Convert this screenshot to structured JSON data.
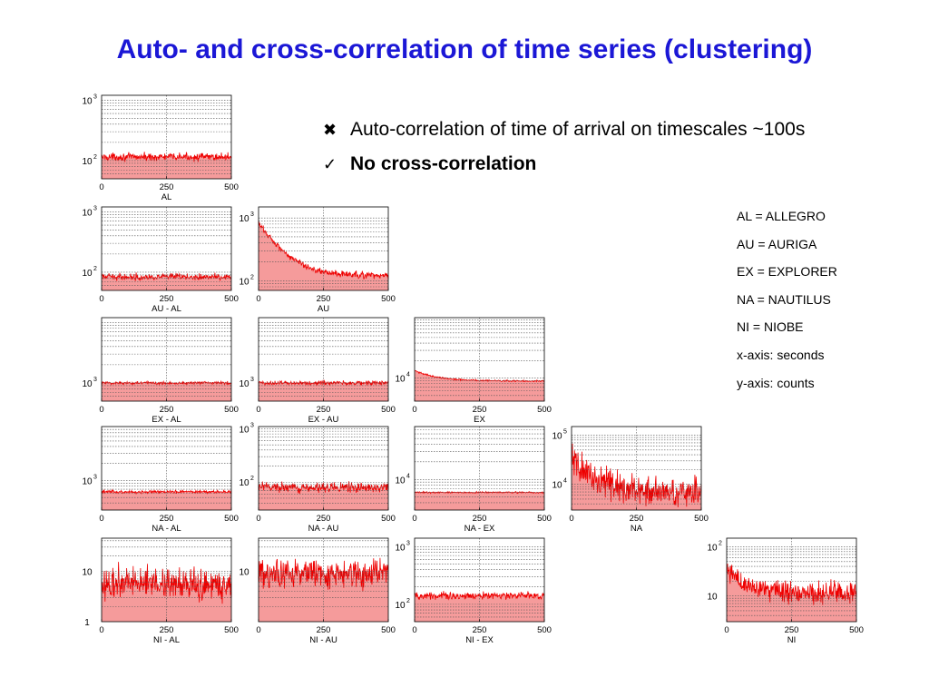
{
  "slide": {
    "title": "Auto- and cross-correlation of time series (clustering)",
    "title_color": "#1b17d6",
    "bullets": [
      {
        "marker": "✖",
        "text": "Auto-correlation of time of arrival on timescales ~100s"
      },
      {
        "marker": "✓",
        "text": "No cross-correlation"
      }
    ],
    "legend": [
      "AL = ALLEGRO",
      "AU = AURIGA",
      "EX = EXPLORER",
      "NA = NAUTILUS",
      "NI = NIOBE",
      "x-axis: seconds",
      "y-axis: counts"
    ]
  },
  "colors": {
    "series_line": "#ee0000",
    "series_fill": "#f59b9b",
    "grid": "#555555",
    "frame": "#000000"
  },
  "chart_data": [
    {
      "type": "area",
      "title": "AL",
      "xlim": [
        0,
        500
      ],
      "xticks": [
        "0",
        "250",
        "500"
      ],
      "yscale": "log",
      "ylim": [
        50,
        1200
      ],
      "yticks": [
        {
          "value": 1000,
          "base": "10",
          "exp": "3"
        },
        {
          "value": 100,
          "base": "10",
          "exp": "2"
        }
      ],
      "series": [
        {
          "level": 115,
          "noise": 0.07,
          "decay_amp": 0,
          "decay_tau": 1
        }
      ]
    },
    {
      "type": "area",
      "title": "AU - AL",
      "xlim": [
        0,
        500
      ],
      "xticks": [
        "0",
        "250",
        "500"
      ],
      "yscale": "log",
      "ylim": [
        50,
        1200
      ],
      "yticks": [
        {
          "value": 1000,
          "base": "10",
          "exp": "3"
        },
        {
          "value": 100,
          "base": "10",
          "exp": "2"
        }
      ],
      "series": [
        {
          "level": 84,
          "noise": 0.06,
          "decay_amp": 0,
          "decay_tau": 1
        }
      ]
    },
    {
      "type": "area",
      "title": "AU",
      "xlim": [
        0,
        500
      ],
      "xticks": [
        "0",
        "250",
        "500"
      ],
      "yscale": "log",
      "ylim": [
        70,
        1500
      ],
      "yticks": [
        {
          "value": 1000,
          "base": "10",
          "exp": "3"
        },
        {
          "value": 100,
          "base": "10",
          "exp": "2"
        }
      ],
      "series": [
        {
          "level": 120,
          "noise": 0.06,
          "decay_amp": 700,
          "decay_tau": 70
        }
      ]
    },
    {
      "type": "area",
      "title": "EX - AL",
      "xlim": [
        0,
        500
      ],
      "xticks": [
        "0",
        "250",
        "500"
      ],
      "yscale": "log",
      "ylim": [
        500,
        12000
      ],
      "yticks": [
        {
          "value": 1000,
          "base": "10",
          "exp": "3"
        }
      ],
      "series": [
        {
          "level": 1000,
          "noise": 0.03,
          "decay_amp": 0,
          "decay_tau": 1
        }
      ]
    },
    {
      "type": "area",
      "title": "EX - AU",
      "xlim": [
        0,
        500
      ],
      "xticks": [
        "0",
        "250",
        "500"
      ],
      "yscale": "log",
      "ylim": [
        500,
        12000
      ],
      "yticks": [
        {
          "value": 1000,
          "base": "10",
          "exp": "3"
        }
      ],
      "series": [
        {
          "level": 1000,
          "noise": 0.04,
          "decay_amp": 0,
          "decay_tau": 1
        }
      ]
    },
    {
      "type": "area",
      "title": "EX",
      "xlim": [
        0,
        500
      ],
      "xticks": [
        "0",
        "250",
        "500"
      ],
      "yscale": "log",
      "ylim": [
        4000,
        110000
      ],
      "yticks": [
        {
          "value": 10000,
          "base": "10",
          "exp": "4"
        }
      ],
      "series": [
        {
          "level": 8900,
          "noise": 0.015,
          "decay_amp": 4500,
          "decay_tau": 80
        }
      ]
    },
    {
      "type": "area",
      "title": "NA - AL",
      "xlim": [
        0,
        500
      ],
      "xticks": [
        "0",
        "250",
        "500"
      ],
      "yscale": "log",
      "ylim": [
        300,
        9000
      ],
      "yticks": [
        {
          "value": 1000,
          "base": "10",
          "exp": "3"
        }
      ],
      "series": [
        {
          "level": 630,
          "noise": 0.03,
          "decay_amp": 0,
          "decay_tau": 1
        }
      ]
    },
    {
      "type": "area",
      "title": "NA - AU",
      "xlim": [
        0,
        500
      ],
      "xticks": [
        "0",
        "250",
        "500"
      ],
      "yscale": "log",
      "ylim": [
        30,
        1100
      ],
      "yticks": [
        {
          "value": 1000,
          "base": "10",
          "exp": "3"
        },
        {
          "value": 100,
          "base": "10",
          "exp": "2"
        }
      ],
      "series": [
        {
          "level": 80,
          "noise": 0.1,
          "decay_amp": 0,
          "decay_tau": 1
        }
      ]
    },
    {
      "type": "area",
      "title": "NA - EX",
      "xlim": [
        0,
        500
      ],
      "xticks": [
        "0",
        "250",
        "500"
      ],
      "yscale": "log",
      "ylim": [
        3000,
        80000
      ],
      "yticks": [
        {
          "value": 10000,
          "base": "10",
          "exp": "4"
        }
      ],
      "series": [
        {
          "level": 6000,
          "noise": 0.015,
          "decay_amp": 0,
          "decay_tau": 1
        }
      ]
    },
    {
      "type": "area",
      "title": "NA",
      "xlim": [
        0,
        500
      ],
      "xticks": [
        "0",
        "250",
        "500"
      ],
      "yscale": "log",
      "ylim": [
        3000,
        150000
      ],
      "yticks": [
        {
          "value": 100000,
          "base": "10",
          "exp": "5"
        },
        {
          "value": 10000,
          "base": "10",
          "exp": "4"
        }
      ],
      "series": [
        {
          "level": 7000,
          "noise": 0.35,
          "decay_amp": 25000,
          "decay_tau": 70
        }
      ]
    },
    {
      "type": "area",
      "title": "NI - AL",
      "xlim": [
        0,
        500
      ],
      "xticks": [
        "0",
        "250",
        "500"
      ],
      "yscale": "log",
      "ylim": [
        1,
        45
      ],
      "yticks": [
        {
          "value": 10,
          "base": "10",
          "exp": ""
        },
        {
          "value": 1,
          "base": "1",
          "exp": ""
        }
      ],
      "series": [
        {
          "level": 6,
          "noise": 0.35,
          "decay_amp": 0,
          "decay_tau": 1
        }
      ]
    },
    {
      "type": "area",
      "title": "NI - AU",
      "xlim": [
        0,
        500
      ],
      "xticks": [
        "0",
        "250",
        "500"
      ],
      "yscale": "log",
      "ylim": [
        1,
        45
      ],
      "yticks": [
        {
          "value": 10,
          "base": "10",
          "exp": ""
        }
      ],
      "series": [
        {
          "level": 9,
          "noise": 0.3,
          "decay_amp": 0,
          "decay_tau": 1
        }
      ]
    },
    {
      "type": "area",
      "title": "NI - EX",
      "xlim": [
        0,
        500
      ],
      "xticks": [
        "0",
        "250",
        "500"
      ],
      "yscale": "log",
      "ylim": [
        50,
        1400
      ],
      "yticks": [
        {
          "value": 1000,
          "base": "10",
          "exp": "3"
        },
        {
          "value": 100,
          "base": "10",
          "exp": "2"
        }
      ],
      "series": [
        {
          "level": 140,
          "noise": 0.07,
          "decay_amp": 0,
          "decay_tau": 1
        }
      ]
    },
    {
      "type": "area",
      "title": "NI",
      "xlim": [
        0,
        500
      ],
      "xticks": [
        "0",
        "250",
        "500"
      ],
      "yscale": "log",
      "ylim": [
        3,
        150
      ],
      "yticks": [
        {
          "value": 100,
          "base": "10",
          "exp": "2"
        },
        {
          "value": 10,
          "base": "10",
          "exp": ""
        }
      ],
      "series": [
        {
          "level": 12,
          "noise": 0.25,
          "decay_amp": 20,
          "decay_tau": 60
        }
      ]
    }
  ]
}
